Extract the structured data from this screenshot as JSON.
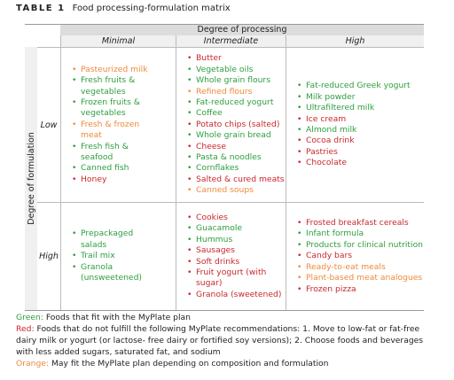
{
  "header": {
    "label": "TABLE 1",
    "title": "Food processing-formulation matrix"
  },
  "table": {
    "column_group": "Degree of processing",
    "row_group": "Degree of formulation",
    "columns": [
      "Minimal",
      "Intermediate",
      "High"
    ],
    "rows": [
      {
        "label": "Low",
        "cells": [
          {
            "items": [
              {
                "text": "Pasteurized milk",
                "color": "#ef8a3a"
              },
              {
                "text": "Fresh fruits & vegetables",
                "color": "#2e9e3e"
              },
              {
                "text": "Frozen fruits & vegetables",
                "color": "#2e9e3e"
              },
              {
                "text": "Fresh & frozen meat",
                "color": "#ef8a3a"
              },
              {
                "text": "Fresh fish & seafood",
                "color": "#2e9e3e"
              },
              {
                "text": "Canned fish",
                "color": "#2e9e3e"
              },
              {
                "text": "Honey",
                "color": "#c8282d"
              }
            ]
          },
          {
            "items": [
              {
                "text": "Butter",
                "color": "#c8282d"
              },
              {
                "text": "Vegetable oils",
                "color": "#2e9e3e"
              },
              {
                "text": "Whole grain flours",
                "color": "#2e9e3e"
              },
              {
                "text": "Refined flours",
                "color": "#ef8a3a"
              },
              {
                "text": "Fat-reduced yogurt",
                "color": "#2e9e3e"
              },
              {
                "text": "Coffee",
                "color": "#2e9e3e"
              },
              {
                "text": "Potato chips (salted)",
                "color": "#c8282d"
              },
              {
                "text": "Whole grain bread",
                "color": "#2e9e3e"
              },
              {
                "text": "Cheese",
                "color": "#c8282d"
              },
              {
                "text": "Pasta & noodles",
                "color": "#2e9e3e"
              },
              {
                "text": "Cornflakes",
                "color": "#2e9e3e"
              },
              {
                "text": "Salted & cured meats",
                "color": "#c8282d"
              },
              {
                "text": "Canned soups",
                "color": "#ef8a3a"
              }
            ]
          },
          {
            "items": [
              {
                "text": "Fat-reduced Greek yogurt",
                "color": "#2e9e3e"
              },
              {
                "text": "Milk powder",
                "color": "#2e9e3e"
              },
              {
                "text": "Ultrafiltered milk",
                "color": "#2e9e3e"
              },
              {
                "text": "Ice cream",
                "color": "#c8282d"
              },
              {
                "text": "Almond milk",
                "color": "#2e9e3e"
              },
              {
                "text": "Cocoa drink",
                "color": "#c8282d"
              },
              {
                "text": "Pastries",
                "color": "#c8282d"
              },
              {
                "text": "Chocolate",
                "color": "#c8282d"
              }
            ]
          }
        ]
      },
      {
        "label": "High",
        "cells": [
          {
            "items": [
              {
                "text": "Prepackaged salads",
                "color": "#2e9e3e"
              },
              {
                "text": "Trail mix",
                "color": "#2e9e3e"
              },
              {
                "text": "Granola (unsweetened)",
                "color": "#2e9e3e"
              }
            ]
          },
          {
            "items": [
              {
                "text": "Cookies",
                "color": "#c8282d"
              },
              {
                "text": "Guacamole",
                "color": "#2e9e3e"
              },
              {
                "text": "Hummus",
                "color": "#2e9e3e"
              },
              {
                "text": "Sausages",
                "color": "#c8282d"
              },
              {
                "text": "Soft drinks",
                "color": "#c8282d"
              },
              {
                "text": "Fruit yogurt (with sugar)",
                "color": "#c8282d"
              },
              {
                "text": "Granola (sweetened)",
                "color": "#c8282d"
              }
            ]
          },
          {
            "items": [
              {
                "text": "Frosted breakfast cereals",
                "color": "#c8282d"
              },
              {
                "text": "Infant formula",
                "color": "#2e9e3e"
              },
              {
                "text": "Products for clinical nutrition",
                "color": "#2e9e3e"
              },
              {
                "text": "Candy bars",
                "color": "#c8282d"
              },
              {
                "text": "Ready-to-eat meals",
                "color": "#ef8a3a"
              },
              {
                "text": "Plant-based meat analogues",
                "color": "#ef8a3a"
              },
              {
                "text": "Frozen pizza",
                "color": "#c8282d"
              }
            ]
          }
        ]
      }
    ]
  },
  "footnotes": [
    {
      "label": "Green:",
      "color": "#2e9e3e",
      "text": "Foods that fit with the MyPlate plan"
    },
    {
      "label": "Red:",
      "color": "#c8282d",
      "text": "Foods that do not fulfill the following MyPlate recommendations: 1. Move to low-fat or fat-free dairy milk or yogurt (or lactose- free dairy or fortified soy versions); 2. Choose foods and beverages with less added sugars, saturated fat, and sodium"
    },
    {
      "label": "Orange:",
      "color": "#ef8a3a",
      "text": "May fit the MyPlate plan depending on composition and formulation"
    }
  ]
}
